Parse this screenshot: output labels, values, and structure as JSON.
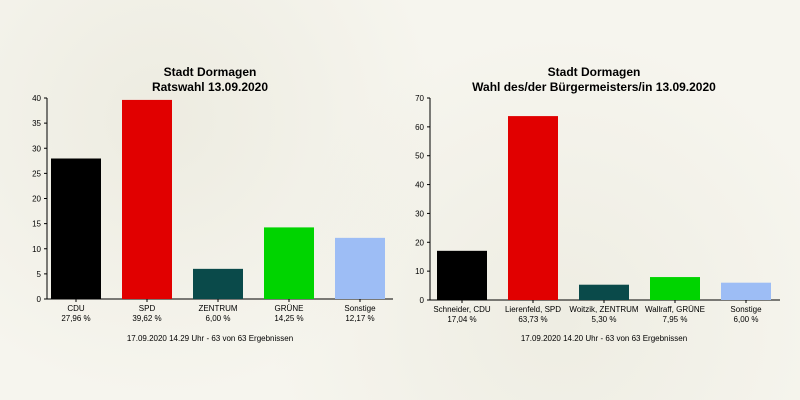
{
  "chart_data": [
    {
      "type": "bar",
      "title": "Stadt Dormagen",
      "subtitle": "Ratswahl 13.09.2020",
      "categories": [
        "CDU",
        "SPD",
        "ZENTRUM",
        "GRÜNE",
        "Sonstige"
      ],
      "values": [
        27.96,
        39.62,
        6.0,
        14.25,
        12.17
      ],
      "value_labels": [
        "27,96 %",
        "39,62 %",
        "6,00 %",
        "14,25 %",
        "12,17 %"
      ],
      "colors": [
        "#000000",
        "#e10000",
        "#0a4a4a",
        "#00d400",
        "#9dbdf5"
      ],
      "ylim": [
        0,
        40
      ],
      "yticks": [
        0,
        5,
        10,
        15,
        20,
        25,
        30,
        35,
        40
      ],
      "footer": "17.09.2020 14.29 Uhr - 63 von 63 Ergebnissen",
      "grid": false,
      "xlabel": "",
      "ylabel": ""
    },
    {
      "type": "bar",
      "title": "Stadt Dormagen",
      "subtitle": "Wahl des/der Bürgermeisters/in 13.09.2020",
      "categories": [
        "Schneider, CDU",
        "Lierenfeld, SPD",
        "Woitzik, ZENTRUM",
        "Wallraff, GRÜNE",
        "Sonstige"
      ],
      "values": [
        17.04,
        63.73,
        5.3,
        7.95,
        6.0
      ],
      "value_labels": [
        "17,04 %",
        "63,73 %",
        "5,30 %",
        "7,95 %",
        "6,00 %"
      ],
      "colors": [
        "#000000",
        "#e10000",
        "#0a4a4a",
        "#00d400",
        "#9dbdf5"
      ],
      "ylim": [
        0,
        70
      ],
      "yticks": [
        0,
        10,
        20,
        30,
        40,
        50,
        60,
        70
      ],
      "footer": "17.09.2020 14.20 Uhr - 63 von 63 Ergebnissen",
      "grid": false,
      "xlabel": "",
      "ylabel": ""
    }
  ]
}
